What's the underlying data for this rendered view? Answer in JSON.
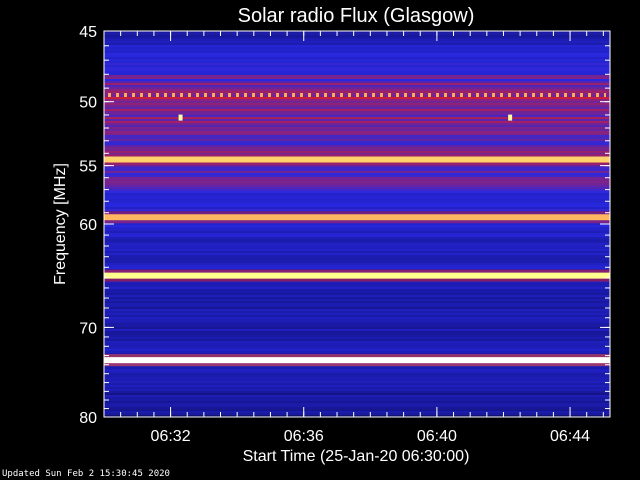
{
  "chart_data": {
    "type": "heatmap",
    "title": "Solar radio Flux (Glasgow)",
    "xlabel": "Start Time (25-Jan-20 06:30:00)",
    "ylabel": "Frequency [MHz]",
    "y_axis": {
      "range_mhz": [
        45,
        80
      ],
      "scale": "log",
      "inverted": true,
      "major_ticks": [
        "45",
        "50",
        "55",
        "60",
        "70",
        "80"
      ]
    },
    "x_axis": {
      "range_minutes_after_start": [
        0,
        15.2
      ],
      "major_ticks": [
        {
          "label": "06:32",
          "minutes": 2
        },
        {
          "label": "06:36",
          "minutes": 6
        },
        {
          "label": "06:40",
          "minutes": 10
        },
        {
          "label": "06:44",
          "minutes": 14
        }
      ]
    },
    "colormap": [
      "#0a0a4a",
      "#1a1aa8",
      "#2828e0",
      "#c81e3c",
      "#ff1e1e",
      "#ffff80",
      "#ffffff"
    ],
    "background_intensity_by_frequency": [
      {
        "mhz": 45.0,
        "level": 0.15
      },
      {
        "mhz": 46.5,
        "level": 0.3
      },
      {
        "mhz": 48.0,
        "level": 0.35
      },
      {
        "mhz": 49.5,
        "level": 0.45
      },
      {
        "mhz": 51.0,
        "level": 0.42
      },
      {
        "mhz": 53.0,
        "level": 0.4
      },
      {
        "mhz": 56.0,
        "level": 0.38
      },
      {
        "mhz": 58.0,
        "level": 0.3
      },
      {
        "mhz": 60.0,
        "level": 0.28
      },
      {
        "mhz": 62.0,
        "level": 0.22
      },
      {
        "mhz": 64.5,
        "level": 0.25
      },
      {
        "mhz": 67.0,
        "level": 0.2
      },
      {
        "mhz": 70.0,
        "level": 0.18
      },
      {
        "mhz": 72.0,
        "level": 0.22
      },
      {
        "mhz": 75.0,
        "level": 0.18
      },
      {
        "mhz": 78.0,
        "level": 0.15
      },
      {
        "mhz": 80.0,
        "level": 0.12
      }
    ],
    "emission_bands": [
      {
        "mhz": 49.5,
        "level": 0.62,
        "style": "dotted"
      },
      {
        "mhz": 54.5,
        "level": 0.8,
        "style": "solid"
      },
      {
        "mhz": 59.4,
        "level": 0.78,
        "style": "solid"
      },
      {
        "mhz": 64.8,
        "level": 0.85,
        "style": "solid"
      },
      {
        "mhz": 73.5,
        "level": 1.0,
        "style": "solid"
      }
    ],
    "bursts": [
      {
        "minutes": 2.3,
        "mhz": 51.2
      },
      {
        "minutes": 12.2,
        "mhz": 51.2
      }
    ]
  },
  "footer": {
    "updated_text": "Updated Sun Feb  2 15:30:45 2020"
  }
}
